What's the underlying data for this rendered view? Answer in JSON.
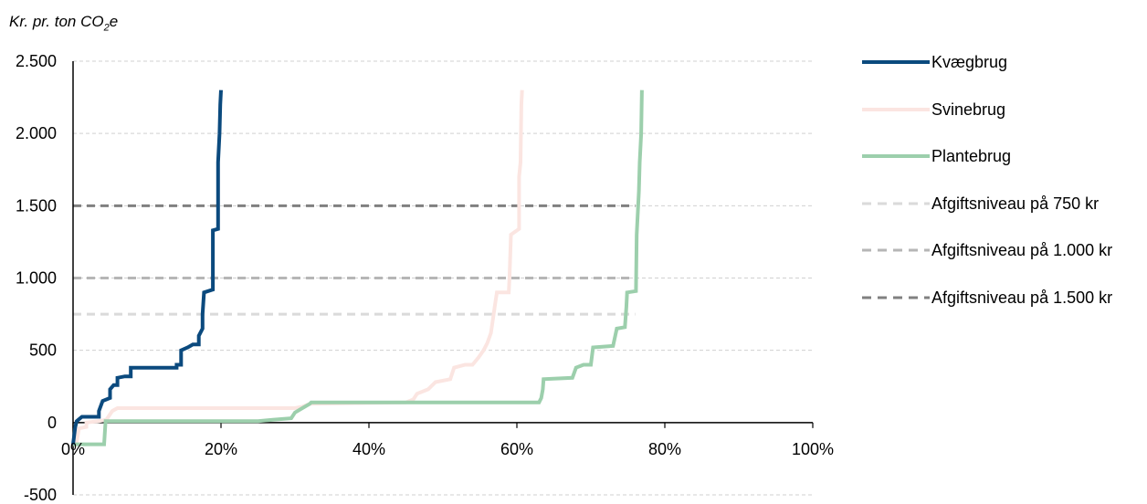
{
  "chart_data": {
    "type": "line",
    "ylabel_prefix": "Kr. pr. ton CO",
    "ylabel_sub": "2",
    "ylabel_suffix": "e",
    "xlim": [
      0,
      100
    ],
    "ylim": [
      -500,
      2500
    ],
    "yticks": [
      -500,
      0,
      500,
      1000,
      1500,
      2000,
      2500
    ],
    "ytick_labels": [
      "-500",
      "0",
      "500",
      "1.000",
      "1.500",
      "2.000",
      "2.500"
    ],
    "xticks": [
      0,
      20,
      40,
      60,
      80,
      100
    ],
    "xtick_labels": [
      "0%",
      "20%",
      "40%",
      "60%",
      "80%",
      "100%"
    ],
    "grid": true,
    "legend_position": "right",
    "series": [
      {
        "name": "Kvægbrug",
        "color": "#0b4a7e",
        "style": "solid",
        "points": [
          [
            0,
            -150
          ],
          [
            0.3,
            -30
          ],
          [
            0.5,
            10
          ],
          [
            1.2,
            40
          ],
          [
            3.5,
            40
          ],
          [
            3.5,
            80
          ],
          [
            4,
            150
          ],
          [
            5,
            170
          ],
          [
            5,
            230
          ],
          [
            5.5,
            260
          ],
          [
            6,
            260
          ],
          [
            6,
            310
          ],
          [
            7,
            320
          ],
          [
            7.8,
            320
          ],
          [
            7.8,
            380
          ],
          [
            14,
            380
          ],
          [
            14,
            400
          ],
          [
            14.6,
            400
          ],
          [
            14.6,
            500
          ],
          [
            15.5,
            520
          ],
          [
            16.2,
            540
          ],
          [
            17,
            540
          ],
          [
            17,
            600
          ],
          [
            17.5,
            650
          ],
          [
            17.5,
            750
          ],
          [
            17.7,
            900
          ],
          [
            18.9,
            920
          ],
          [
            18.9,
            1330
          ],
          [
            19.6,
            1340
          ],
          [
            19.6,
            1800
          ],
          [
            19.8,
            2000
          ],
          [
            19.9,
            2200
          ],
          [
            20,
            2300
          ]
        ]
      },
      {
        "name": "Svinebrug",
        "color": "#fbe5e1",
        "style": "solid",
        "points": [
          [
            0,
            -150
          ],
          [
            0.5,
            -130
          ],
          [
            0.8,
            -40
          ],
          [
            1.8,
            -30
          ],
          [
            1.8,
            0
          ],
          [
            3.5,
            10
          ],
          [
            4.5,
            20
          ],
          [
            5.3,
            80
          ],
          [
            6,
            100
          ],
          [
            14,
            100
          ],
          [
            30,
            100
          ],
          [
            31,
            110
          ],
          [
            32,
            130
          ],
          [
            45,
            140
          ],
          [
            46,
            160
          ],
          [
            46.5,
            200
          ],
          [
            48,
            230
          ],
          [
            49,
            280
          ],
          [
            51,
            300
          ],
          [
            51.5,
            380
          ],
          [
            53,
            400
          ],
          [
            54,
            400
          ],
          [
            54.8,
            450
          ],
          [
            55.5,
            500
          ],
          [
            56,
            550
          ],
          [
            56.5,
            620
          ],
          [
            57,
            800
          ],
          [
            57.3,
            900
          ],
          [
            58.9,
            900
          ],
          [
            59,
            1000
          ],
          [
            59.2,
            1300
          ],
          [
            60.3,
            1340
          ],
          [
            60.3,
            1700
          ],
          [
            60.5,
            1800
          ],
          [
            60.6,
            2200
          ],
          [
            60.7,
            2300
          ]
        ]
      },
      {
        "name": "Plantebrug",
        "color": "#9ccfac",
        "style": "solid",
        "points": [
          [
            0,
            -150
          ],
          [
            4.2,
            -150
          ],
          [
            4.4,
            10
          ],
          [
            25,
            10
          ],
          [
            27,
            20
          ],
          [
            29.5,
            30
          ],
          [
            30,
            70
          ],
          [
            31,
            100
          ],
          [
            32,
            130
          ],
          [
            32.2,
            140
          ],
          [
            50,
            140
          ],
          [
            63,
            140
          ],
          [
            63.3,
            170
          ],
          [
            63.5,
            230
          ],
          [
            63.6,
            300
          ],
          [
            67.5,
            310
          ],
          [
            68,
            380
          ],
          [
            69,
            400
          ],
          [
            70,
            400
          ],
          [
            70.3,
            520
          ],
          [
            73,
            530
          ],
          [
            73.3,
            600
          ],
          [
            73.5,
            650
          ],
          [
            74.6,
            660
          ],
          [
            74.8,
            800
          ],
          [
            74.9,
            900
          ],
          [
            76.1,
            910
          ],
          [
            76.2,
            1300
          ],
          [
            76.5,
            1600
          ],
          [
            76.6,
            1800
          ],
          [
            76.8,
            2000
          ],
          [
            76.9,
            2300
          ]
        ]
      },
      {
        "name": "Afgiftsniveau på 750 kr",
        "color": "#dadada",
        "style": "dashed",
        "y": 750,
        "x_range": [
          0,
          76
        ]
      },
      {
        "name": "Afgiftsniveau på 1.000 kr",
        "color": "#b6b6b6",
        "style": "dashed",
        "y": 1000,
        "x_range": [
          0,
          76
        ]
      },
      {
        "name": "Afgiftsniveau på 1.500 kr",
        "color": "#808080",
        "style": "dashed",
        "y": 1500,
        "x_range": [
          0,
          76
        ]
      }
    ]
  }
}
